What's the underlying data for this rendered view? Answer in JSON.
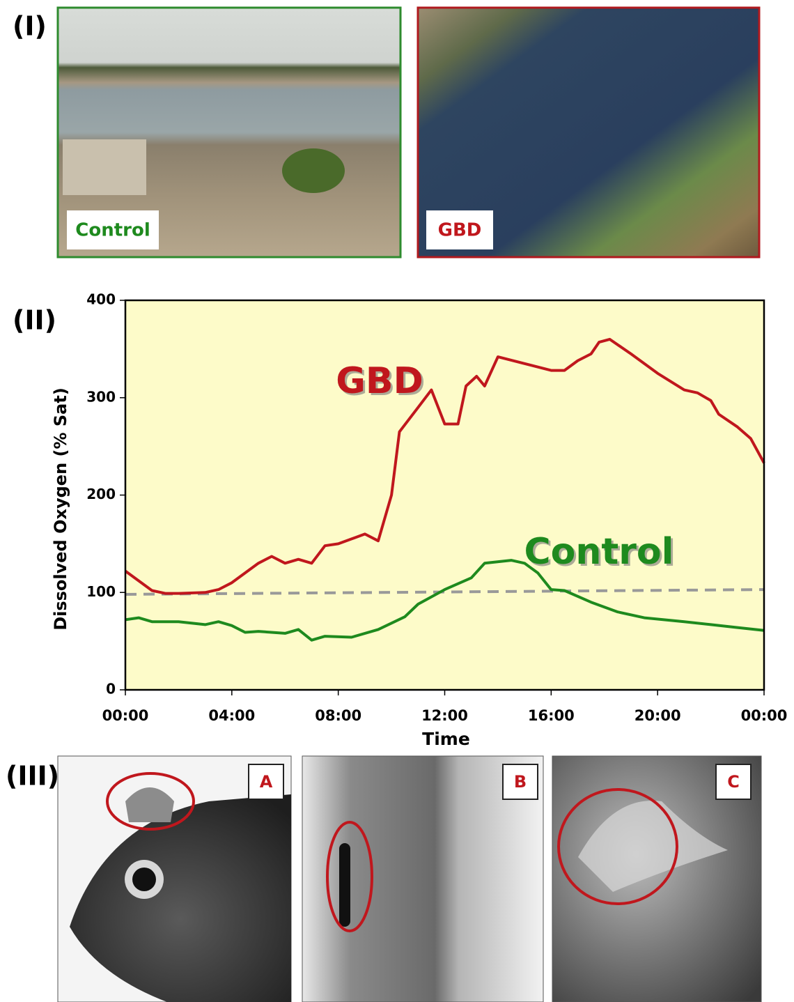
{
  "panels": {
    "labels": [
      "(I)",
      "(II)",
      "(III)"
    ],
    "photos_top": [
      "Control",
      "GBD"
    ],
    "photos_bottom": [
      "A",
      "B",
      "C"
    ]
  },
  "chart_data": {
    "type": "line",
    "xlabel": "Time",
    "ylabel": "Dissolved Oxygen (% Sat)",
    "xlim": [
      0,
      24
    ],
    "ylim": [
      0,
      400
    ],
    "xticks": [
      {
        "value": 0,
        "label": "00:00"
      },
      {
        "value": 4,
        "label": "04:00"
      },
      {
        "value": 8,
        "label": "08:00"
      },
      {
        "value": 12,
        "label": "12:00"
      },
      {
        "value": 16,
        "label": "16:00"
      },
      {
        "value": 20,
        "label": "20:00"
      },
      {
        "value": 24,
        "label": "00:00"
      }
    ],
    "yticks": [
      0,
      100,
      200,
      300,
      400
    ],
    "background": "#fdfbc9",
    "series": [
      {
        "name": "GBD",
        "color": "#c0171d",
        "x": [
          0,
          0.5,
          1,
          1.5,
          2,
          3,
          3.5,
          4,
          4.5,
          5,
          5.5,
          6,
          6.5,
          7,
          7.5,
          8,
          8.5,
          9,
          9.5,
          10,
          10.3,
          11,
          11.5,
          12,
          12.5,
          12.8,
          13.2,
          13.5,
          14,
          15,
          16,
          16.5,
          17,
          17.5,
          17.8,
          18.2,
          19,
          20,
          21,
          21.5,
          22,
          22.3,
          23,
          23.5,
          24
        ],
        "values": [
          122,
          112,
          102,
          99,
          99,
          100,
          103,
          110,
          120,
          130,
          137,
          130,
          134,
          130,
          148,
          150,
          155,
          160,
          153,
          200,
          265,
          290,
          308,
          273,
          273,
          312,
          322,
          312,
          342,
          335,
          328,
          328,
          338,
          345,
          357,
          360,
          345,
          325,
          308,
          305,
          297,
          283,
          270,
          258,
          233
        ]
      },
      {
        "name": "Control",
        "color": "#1e8a1e",
        "x": [
          0,
          0.5,
          1,
          2,
          3,
          3.5,
          4,
          4.5,
          5,
          6,
          6.5,
          7,
          7.5,
          8.5,
          9.5,
          10.5,
          11,
          12,
          13,
          13.5,
          14.5,
          15,
          15.5,
          16,
          16.5,
          17.5,
          18.5,
          19.5,
          21,
          22,
          23,
          24
        ],
        "values": [
          72,
          74,
          70,
          70,
          67,
          70,
          66,
          59,
          60,
          58,
          62,
          51,
          55,
          54,
          62,
          75,
          88,
          103,
          115,
          130,
          133,
          130,
          120,
          103,
          102,
          90,
          80,
          74,
          70,
          67,
          64,
          61
        ]
      }
    ],
    "reference_line": {
      "x": [
        0,
        24
      ],
      "values": [
        98,
        103
      ],
      "color": "#999999",
      "style": "dashed"
    }
  }
}
